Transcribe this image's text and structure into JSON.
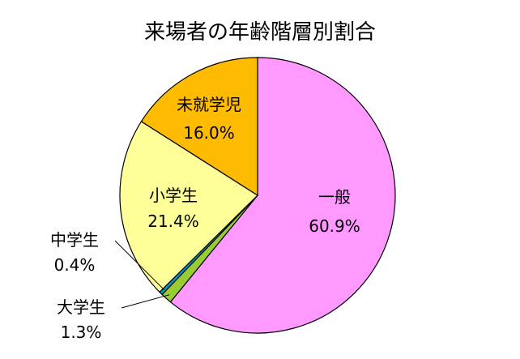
{
  "chart_data": {
    "type": "pie",
    "title": "来場者の年齢階層別割合",
    "slices": [
      {
        "name": "一般",
        "value": 60.9,
        "label": "60.9%",
        "color": "#FF99FF"
      },
      {
        "name": "大学生",
        "value": 1.3,
        "label": "1.3%",
        "color": "#99CC33"
      },
      {
        "name": "中学生",
        "value": 0.4,
        "label": "0.4%",
        "color": "#0099CC"
      },
      {
        "name": "小学生",
        "value": 21.4,
        "label": "21.4%",
        "color": "#FFFF99"
      },
      {
        "name": "未就学児",
        "value": 16.0,
        "label": "16.0%",
        "color": "#FFBB00"
      }
    ]
  }
}
